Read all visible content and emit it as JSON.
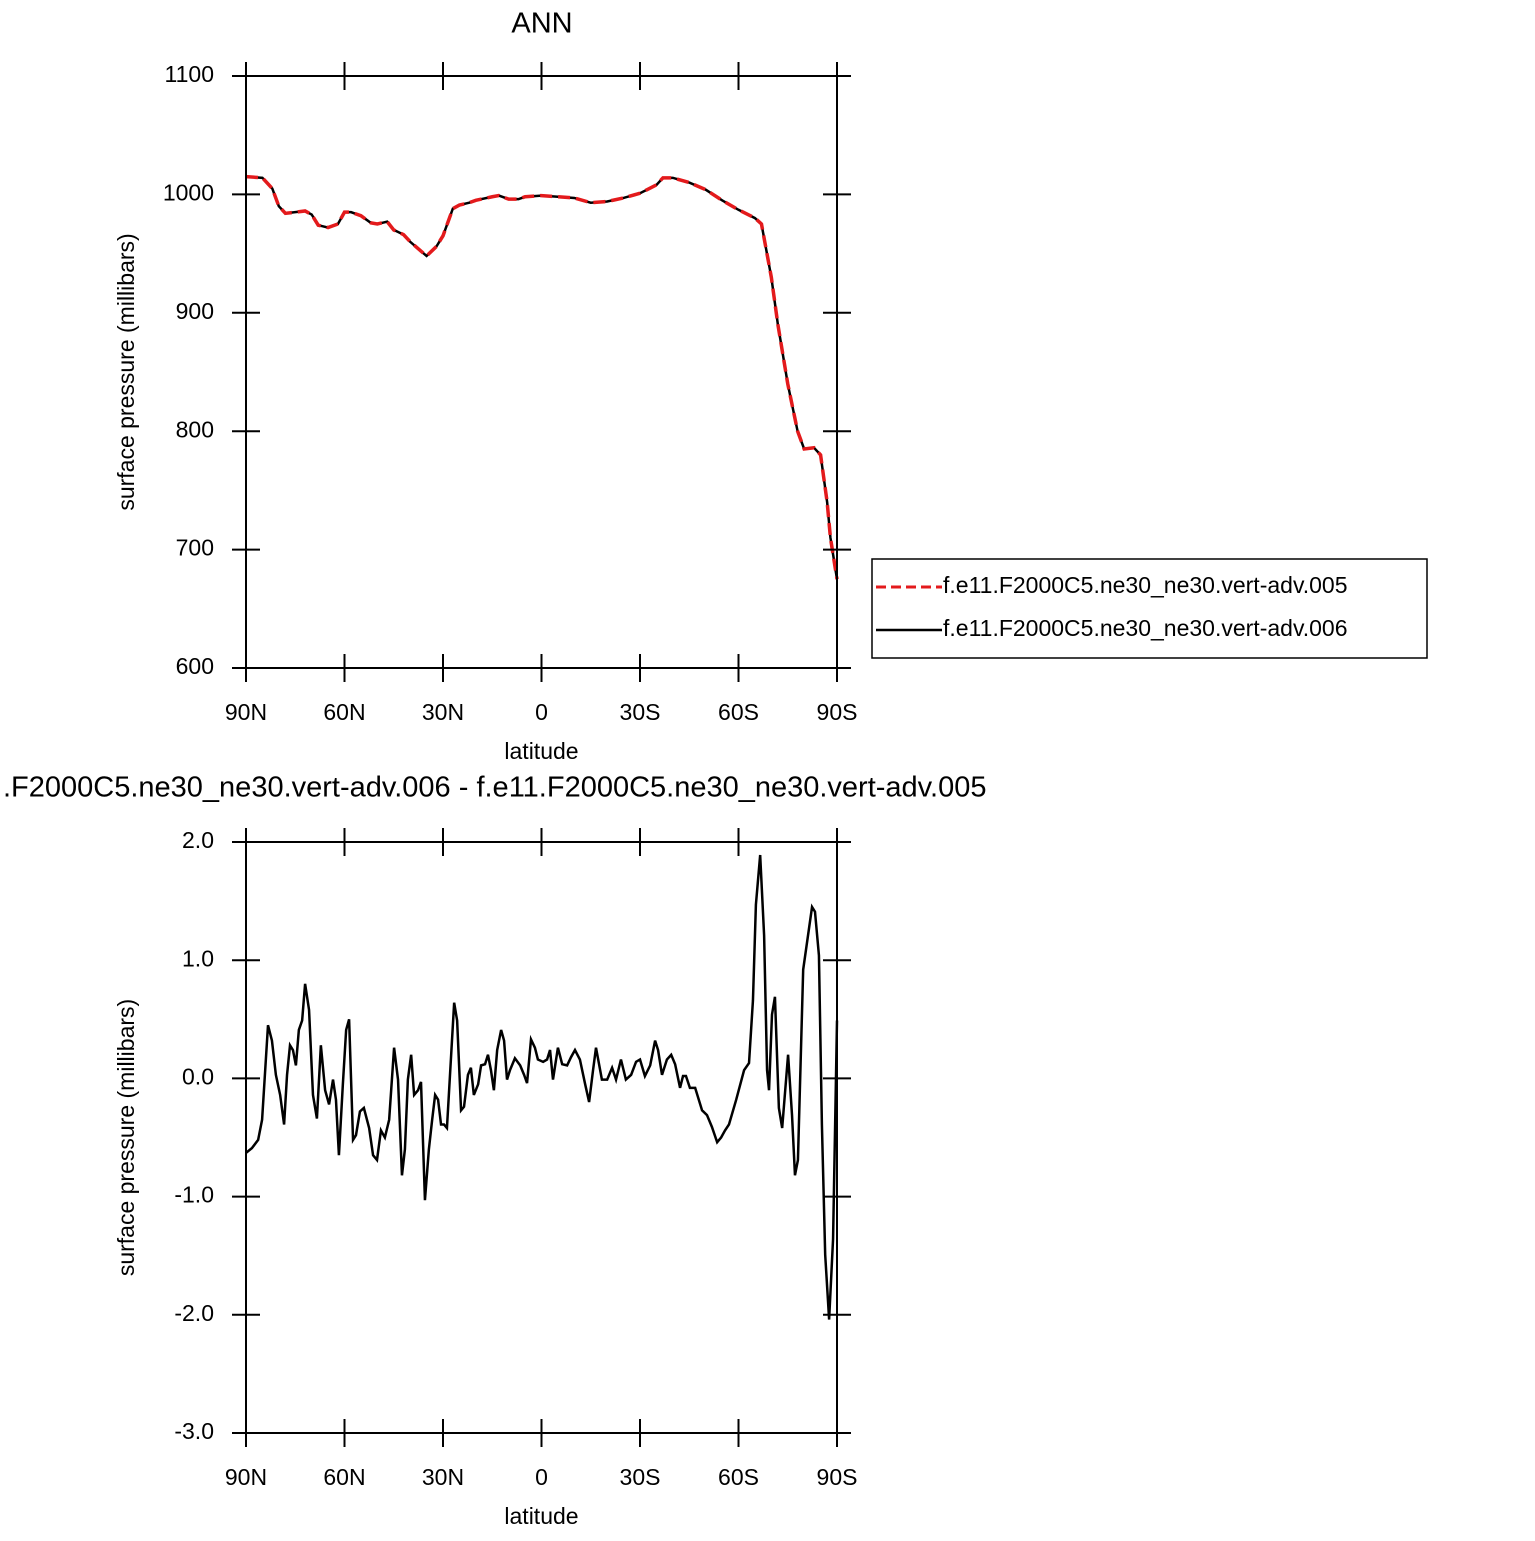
{
  "chart_data": [
    {
      "type": "line",
      "title": "ANN",
      "xlabel": "latitude",
      "ylabel": "surface pressure (millibars)",
      "x": [
        90,
        85,
        82,
        80,
        78,
        75,
        72,
        70,
        68,
        65,
        62,
        60,
        58,
        55,
        52,
        50,
        47,
        45,
        42,
        40,
        35,
        32,
        30,
        27,
        25,
        22,
        20,
        15,
        13,
        10,
        7,
        5,
        0,
        -5,
        -10,
        -15,
        -20,
        -25,
        -30,
        -35,
        -37,
        -40,
        -45,
        -50,
        -55,
        -60,
        -65,
        -67,
        -68,
        -70,
        -72,
        -75,
        -78,
        -80,
        -83,
        -85,
        -87,
        -88,
        -90
      ],
      "series": [
        {
          "name": "f.e11.F2000C5.ne30_ne30.vert-adv.005",
          "color": "#e31a1c",
          "style": "dashed",
          "values": [
            1015,
            1014,
            1005,
            990,
            984,
            985,
            986,
            983,
            974,
            972,
            975,
            985,
            985,
            982,
            976,
            975,
            977,
            970,
            966,
            960,
            948,
            956,
            965,
            988,
            991,
            993,
            995,
            998,
            999,
            996,
            996,
            998,
            999,
            998,
            997,
            993,
            994,
            997,
            1001,
            1008,
            1014,
            1014,
            1010,
            1004,
            995,
            987,
            980,
            975,
            960,
            930,
            890,
            840,
            800,
            785,
            786,
            780,
            740,
            710,
            675
          ]
        },
        {
          "name": "f.e11.F2000C5.ne30_ne30.vert-adv.006",
          "color": "#000000",
          "style": "solid",
          "values": [
            1015,
            1014,
            1005,
            990,
            984,
            985,
            986,
            983,
            974,
            972,
            975,
            985,
            985,
            982,
            976,
            975,
            977,
            970,
            966,
            960,
            948,
            956,
            965,
            988,
            991,
            993,
            995,
            998,
            999,
            996,
            996,
            998,
            999,
            998,
            997,
            993,
            994,
            997,
            1001,
            1008,
            1014,
            1014,
            1010,
            1004,
            995,
            987,
            980,
            975,
            960,
            930,
            890,
            840,
            800,
            785,
            786,
            780,
            740,
            710,
            675
          ]
        }
      ],
      "xlim": [
        90,
        -90
      ],
      "xticks": [
        {
          "value": 90,
          "label": "90N"
        },
        {
          "value": 60,
          "label": "60N"
        },
        {
          "value": 30,
          "label": "30N"
        },
        0,
        {
          "value": -30,
          "label": "30S"
        },
        {
          "value": -60,
          "label": "60S"
        },
        {
          "value": -90,
          "label": "90S"
        }
      ],
      "ylim": [
        600,
        1100
      ],
      "yticks": [
        600,
        700,
        800,
        900,
        1000,
        1100
      ],
      "legend": "right"
    },
    {
      "type": "line",
      "title": ".F2000C5.ne30_ne30.vert-adv.006 - f.e11.F2000C5.ne30_ne30.vert-adv.005",
      "xlabel": "latitude",
      "ylabel": "surface pressure (millibars)",
      "x": [
        90,
        88.2,
        86.3,
        85.1,
        83.3,
        82.1,
        80.9,
        79.6,
        78.4,
        77.5,
        76.6,
        75.7,
        74.8,
        73.9,
        72.9,
        72.0,
        70.8,
        69.6,
        68.4,
        67.2,
        65.9,
        64.7,
        63.5,
        62.6,
        61.7,
        60.5,
        59.5,
        58.6,
        57.4,
        56.5,
        55.3,
        54.1,
        52.5,
        51.3,
        50.1,
        48.9,
        47.7,
        46.4,
        44.9,
        43.7,
        42.5,
        41.6,
        40.7,
        39.7,
        38.8,
        37.6,
        36.7,
        35.5,
        34.3,
        33.3,
        32.4,
        31.5,
        30.6,
        29.7,
        28.8,
        26.6,
        25.7,
        24.5,
        23.6,
        22.4,
        21.5,
        20.6,
        19.3,
        18.4,
        17.2,
        16.3,
        15.4,
        14.5,
        13.5,
        12.3,
        11.4,
        10.5,
        9.6,
        8.1,
        6.5,
        5.3,
        4.4,
        3.2,
        2.0,
        1.1,
        -0.5,
        -1.7,
        -2.6,
        -3.5,
        -5.0,
        -6.3,
        -7.8,
        -9.0,
        -10.2,
        -11.7,
        -13.3,
        -14.5,
        -15.7,
        -16.6,
        -18.4,
        -20.0,
        -21.5,
        -22.7,
        -24.2,
        -25.7,
        -27.3,
        -28.8,
        -30.0,
        -31.5,
        -33.1,
        -34.6,
        -35.5,
        -36.7,
        -38.2,
        -39.5,
        -40.7,
        -42.2,
        -43.1,
        -44.0,
        -45.2,
        -46.8,
        -48.9,
        -50.4,
        -51.9,
        -53.5,
        -54.7,
        -55.9,
        -57.1,
        -59.3,
        -61.7,
        -63.2,
        -64.4,
        -65.3,
        -66.6,
        -67.8,
        -68.7,
        -69.3,
        -70.2,
        -71.1,
        -72.3,
        -73.3,
        -75.1,
        -76.3,
        -77.2,
        -78.1,
        -79.7,
        -82.4,
        -83.3,
        -84.5,
        -85.4,
        -86.4,
        -87.6,
        -88.8,
        -90
      ],
      "series": [
        {
          "color": "#000000",
          "style": "solid",
          "values": [
            -0.63,
            -0.59,
            -0.52,
            -0.35,
            0.45,
            0.32,
            0.03,
            -0.14,
            -0.39,
            0.03,
            0.28,
            0.24,
            0.11,
            0.41,
            0.49,
            0.8,
            0.58,
            -0.14,
            -0.34,
            0.28,
            -0.1,
            -0.22,
            -0.01,
            -0.18,
            -0.65,
            -0.05,
            0.41,
            0.5,
            -0.52,
            -0.48,
            -0.28,
            -0.25,
            -0.42,
            -0.65,
            -0.69,
            -0.44,
            -0.5,
            -0.35,
            0.26,
            -0.01,
            -0.82,
            -0.6,
            -0.01,
            0.2,
            -0.14,
            -0.1,
            -0.03,
            -1.03,
            -0.6,
            -0.35,
            -0.14,
            -0.18,
            -0.39,
            -0.39,
            -0.42,
            0.64,
            0.49,
            -0.27,
            -0.24,
            0.03,
            0.09,
            -0.14,
            -0.05,
            0.11,
            0.12,
            0.2,
            0.07,
            -0.1,
            0.24,
            0.41,
            0.32,
            -0.01,
            0.07,
            0.17,
            0.11,
            0.03,
            -0.04,
            0.33,
            0.26,
            0.16,
            0.14,
            0.16,
            0.24,
            -0.01,
            0.26,
            0.12,
            0.11,
            0.18,
            0.24,
            0.16,
            -0.05,
            -0.2,
            0.07,
            0.26,
            -0.01,
            -0.01,
            0.09,
            -0.01,
            0.16,
            -0.01,
            0.03,
            0.14,
            0.16,
            0.02,
            0.11,
            0.32,
            0.24,
            0.03,
            0.16,
            0.2,
            0.12,
            -0.08,
            0.02,
            0.02,
            -0.08,
            -0.08,
            -0.27,
            -0.31,
            -0.41,
            -0.54,
            -0.5,
            -0.44,
            -0.39,
            -0.18,
            0.07,
            0.13,
            0.66,
            1.47,
            1.89,
            1.21,
            0.07,
            -0.1,
            0.54,
            0.69,
            -0.25,
            -0.42,
            0.2,
            -0.31,
            -0.82,
            -0.69,
            0.92,
            1.45,
            1.41,
            1.04,
            -0.39,
            -1.49,
            -2.04,
            -1.36,
            0.49
          ]
        }
      ],
      "xlim": [
        90,
        -90
      ],
      "xticks": [
        {
          "value": 90,
          "label": "90N"
        },
        {
          "value": 60,
          "label": "60N"
        },
        {
          "value": 30,
          "label": "30N"
        },
        0,
        {
          "value": -30,
          "label": "30S"
        },
        {
          "value": -60,
          "label": "60S"
        },
        {
          "value": -90,
          "label": "90S"
        }
      ],
      "ylim": [
        -3,
        2
      ],
      "yticks": [
        {
          "value": -3,
          "label": "-3.0"
        },
        {
          "value": -2,
          "label": "-2.0"
        },
        {
          "value": -1,
          "label": "-1.0"
        },
        {
          "value": 0,
          "label": "0.0"
        },
        {
          "value": 1,
          "label": "1.0"
        },
        {
          "value": 2,
          "label": "2.0"
        }
      ]
    }
  ]
}
